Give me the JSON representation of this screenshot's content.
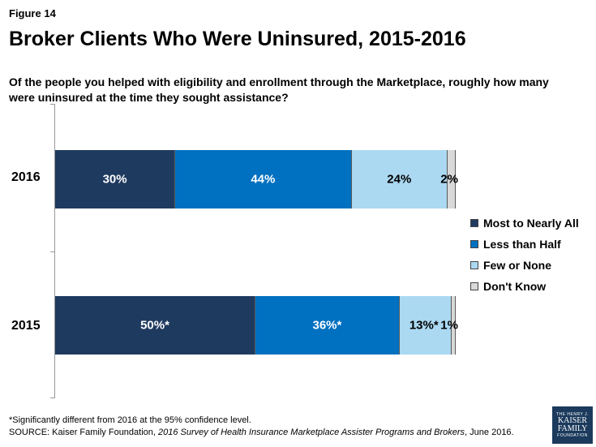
{
  "figure_label": "Figure 14",
  "title": "Broker Clients Who Were Uninsured, 2015-2016",
  "question": "Of the people you helped with eligibility and enrollment through the Marketplace, roughly how many were uninsured at the time they sought assistance?",
  "chart_data": {
    "type": "bar",
    "orientation": "horizontal",
    "stacked": true,
    "categories": [
      "2016",
      "2015"
    ],
    "series": [
      {
        "name": "Most to Nearly All",
        "color": "#1f3a5f",
        "values": [
          30,
          50
        ],
        "labels": [
          "30%",
          "50%*"
        ],
        "label_color": "#ffffff"
      },
      {
        "name": "Less than Half",
        "color": "#0070c0",
        "values": [
          44,
          36
        ],
        "labels": [
          "44%",
          "36%*"
        ],
        "label_color": "#ffffff"
      },
      {
        "name": "Few or None",
        "color": "#abd9f2",
        "values": [
          24,
          13
        ],
        "labels": [
          "24%",
          "13%*"
        ],
        "label_color": "#000000"
      },
      {
        "name": "Don't Know",
        "color": "#d9d9d9",
        "values": [
          2,
          1
        ],
        "labels": [
          "2%",
          "1%"
        ],
        "label_color": "#000000"
      }
    ],
    "xlim": [
      0,
      100
    ],
    "legend_position": "right"
  },
  "footnote": {
    "significance": "*Significantly different from 2016 at the 95% confidence level.",
    "source_prefix": "SOURCE: Kaiser Family Foundation, ",
    "source_title": "2016 Survey of Health Insurance Marketplace Assister Programs and Brokers",
    "source_suffix": ", June 2016."
  },
  "logo": {
    "line1": "THE HENRY J.",
    "line2": "KAISER",
    "line3": "FAMILY",
    "line4": "FOUNDATION"
  }
}
